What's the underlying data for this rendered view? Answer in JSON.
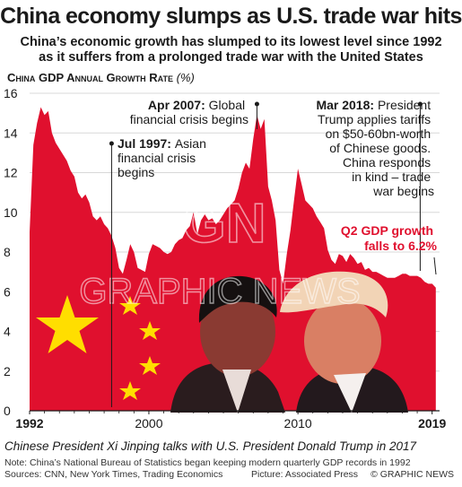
{
  "headline": "China economy slumps as U.S. trade war hits",
  "standfirst": [
    "China’s economic growth has slumped to its lowest level since 1992",
    "as it suffers from a prolonged trade war with the United States"
  ],
  "chart_title": "China GDP Annual Growth Rate",
  "chart_unit": "(%)",
  "chart_data": {
    "type": "area",
    "title": "China GDP Annual Growth Rate (%)",
    "xlabel": "",
    "ylabel": "",
    "xlim": [
      1992,
      2019.5
    ],
    "ylim": [
      0,
      16
    ],
    "yticks": [
      "0",
      "2",
      "4",
      "6",
      "8",
      "10",
      "12",
      "14",
      "16"
    ],
    "xticks": [
      {
        "label": "1992",
        "value": 1992,
        "bold": true
      },
      {
        "label": "2000",
        "value": 2000,
        "bold": false
      },
      {
        "label": "2010",
        "value": 2010,
        "bold": false
      },
      {
        "label": "2019",
        "value": 2019,
        "bold": true
      }
    ],
    "color": "#e0102e",
    "x": [
      1992.0,
      1992.25,
      1992.5,
      1992.75,
      1993.0,
      1993.25,
      1993.5,
      1993.75,
      1994.0,
      1994.25,
      1994.5,
      1994.75,
      1995.0,
      1995.25,
      1995.5,
      1995.75,
      1996.0,
      1996.25,
      1996.5,
      1996.75,
      1997.0,
      1997.25,
      1997.5,
      1997.75,
      1998.0,
      1998.25,
      1998.5,
      1998.75,
      1999.0,
      1999.25,
      1999.5,
      1999.75,
      2000.0,
      2000.25,
      2000.5,
      2000.75,
      2001.0,
      2001.25,
      2001.5,
      2001.75,
      2002.0,
      2002.25,
      2002.5,
      2002.75,
      2003.0,
      2003.25,
      2003.5,
      2003.75,
      2004.0,
      2004.25,
      2004.5,
      2004.75,
      2005.0,
      2005.25,
      2005.5,
      2005.75,
      2006.0,
      2006.25,
      2006.5,
      2006.75,
      2007.0,
      2007.25,
      2007.5,
      2007.75,
      2008.0,
      2008.25,
      2008.5,
      2008.75,
      2009.0,
      2009.25,
      2009.5,
      2009.75,
      2010.0,
      2010.25,
      2010.5,
      2010.75,
      2011.0,
      2011.25,
      2011.5,
      2011.75,
      2012.0,
      2012.25,
      2012.5,
      2012.75,
      2013.0,
      2013.25,
      2013.5,
      2013.75,
      2014.0,
      2014.25,
      2014.5,
      2014.75,
      2015.0,
      2015.25,
      2015.5,
      2015.75,
      2016.0,
      2016.25,
      2016.5,
      2016.75,
      2017.0,
      2017.25,
      2017.5,
      2017.75,
      2018.0,
      2018.25,
      2018.5,
      2018.75,
      2019.0,
      2019.25
    ],
    "y": [
      9.0,
      13.4,
      14.5,
      15.3,
      14.9,
      15.1,
      14.0,
      13.5,
      13.2,
      12.9,
      12.6,
      12.1,
      11.8,
      11.0,
      10.7,
      10.9,
      10.5,
      9.8,
      9.6,
      9.8,
      9.4,
      9.2,
      8.8,
      8.2,
      7.2,
      6.9,
      7.6,
      8.4,
      8.0,
      7.2,
      7.1,
      7.0,
      7.9,
      8.4,
      8.3,
      8.2,
      8.0,
      7.9,
      8.0,
      8.4,
      8.6,
      8.7,
      9.1,
      9.3,
      10.0,
      8.9,
      9.6,
      9.9,
      9.6,
      9.7,
      9.4,
      9.6,
      9.9,
      10.2,
      10.4,
      10.6,
      11.2,
      12.0,
      12.5,
      12.2,
      13.7,
      14.9,
      14.2,
      14.7,
      11.3,
      10.6,
      9.6,
      7.1,
      6.4,
      7.9,
      9.1,
      10.7,
      12.2,
      11.4,
      10.6,
      10.4,
      10.2,
      9.8,
      9.5,
      9.2,
      8.1,
      7.6,
      7.4,
      7.9,
      7.8,
      7.5,
      7.9,
      7.7,
      7.4,
      7.5,
      7.1,
      7.2,
      7.0,
      7.0,
      6.9,
      6.8,
      6.7,
      6.7,
      6.7,
      6.8,
      6.9,
      6.9,
      6.8,
      6.8,
      6.8,
      6.7,
      6.5,
      6.4,
      6.4,
      6.2
    ],
    "annotations": [
      {
        "id": "jul1997",
        "date": "Jul 1997",
        "text": [
          "Asian",
          "financial crisis",
          "begins"
        ],
        "x": 1997.5
      },
      {
        "id": "apr2007",
        "date": "Apr 2007",
        "text": [
          "Global",
          "financial crisis begins"
        ],
        "x": 2007.25
      },
      {
        "id": "mar2018",
        "date": "Mar 2018",
        "text": [
          "President",
          "Trump applies tariffs",
          "on $50-60bn-worth",
          "of Chinese goods.",
          "China responds",
          "in kind – trade",
          "war begins"
        ],
        "x": 2018.2
      }
    ],
    "callout": [
      "Q2 GDP growth",
      "falls to 6.2%"
    ],
    "callout_color": "#e0102e"
  },
  "watermark": "GRAPHIC NEWS",
  "watermark_logo": "GN",
  "photo_description_objects": [
    "flag-stars",
    "xi-jinping-photo",
    "donald-trump-photo"
  ],
  "caption": "Chinese President Xi Jinping talks with U.S. President Donald Trump in 2017",
  "note": "Note: China’s National Bureau of Statistics began keeping modern quarterly GDP records in 1992",
  "sources": "Sources: CNN, New York Times, Trading Economics",
  "picture_credit": "Picture: Associated Press",
  "copyright": "© GRAPHIC NEWS"
}
